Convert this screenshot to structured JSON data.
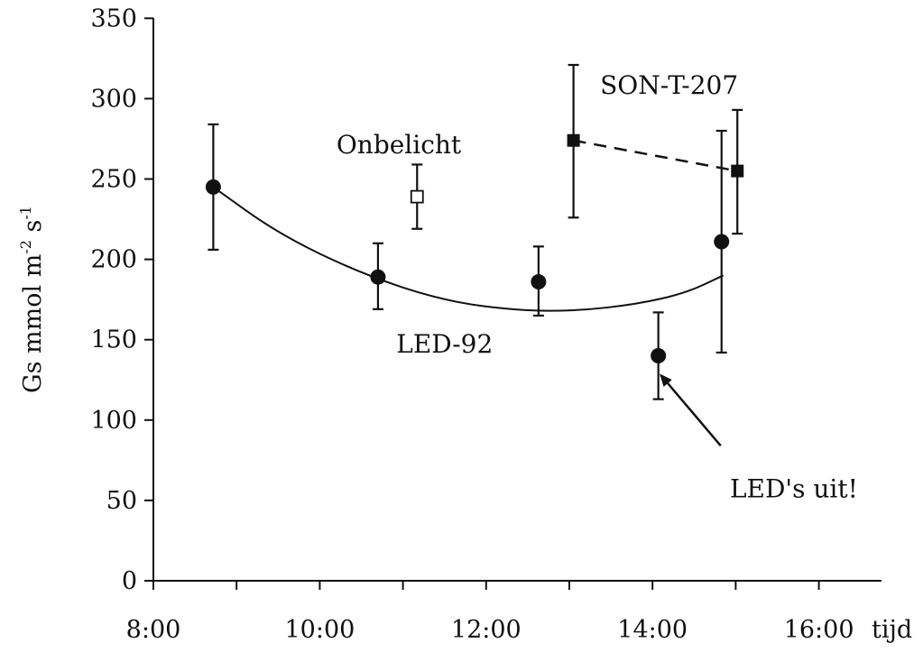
{
  "chart_data": {
    "type": "scatter",
    "xlabel": "tijd",
    "ylabel": {
      "base": "Gs mmol m",
      "sup1": "-2",
      "mid": " s",
      "sup2": "-1"
    },
    "xlim": [
      8.0,
      16.75
    ],
    "ylim": [
      0,
      350
    ],
    "x_ticks": [
      {
        "value": 8,
        "label": "8:00"
      },
      {
        "value": 10,
        "label": "10:00"
      },
      {
        "value": 12,
        "label": "12:00"
      },
      {
        "value": 14,
        "label": "14:00"
      },
      {
        "value": 16,
        "label": "16:00"
      }
    ],
    "y_ticks": [
      0,
      50,
      100,
      150,
      200,
      250,
      300,
      350
    ],
    "series": [
      {
        "name": "LED-92",
        "marker": "circle-filled",
        "points": [
          {
            "x": 8.72,
            "y": 245,
            "low": 206,
            "high": 284
          },
          {
            "x": 10.7,
            "y": 189,
            "low": 169,
            "high": 210
          },
          {
            "x": 12.63,
            "y": 186,
            "low": 165,
            "high": 208
          },
          {
            "x": 14.07,
            "y": 140,
            "low": 113,
            "high": 167
          },
          {
            "x": 14.83,
            "y": 211,
            "low": 142,
            "high": 280
          }
        ],
        "fit_curve": [
          {
            "x": 8.72,
            "y": 245
          },
          {
            "x": 9.5,
            "y": 216
          },
          {
            "x": 10.5,
            "y": 191
          },
          {
            "x": 11.5,
            "y": 174
          },
          {
            "x": 12.4,
            "y": 168
          },
          {
            "x": 13.1,
            "y": 168
          },
          {
            "x": 13.8,
            "y": 172
          },
          {
            "x": 14.4,
            "y": 179
          },
          {
            "x": 14.85,
            "y": 190
          }
        ]
      },
      {
        "name": "Onbelicht",
        "marker": "square-open",
        "points": [
          {
            "x": 11.17,
            "y": 239,
            "low": 219,
            "high": 259
          }
        ]
      },
      {
        "name": "SON-T-207",
        "marker": "square-filled",
        "connector": "dashed",
        "points": [
          {
            "x": 13.05,
            "y": 274,
            "low": 226,
            "high": 321
          },
          {
            "x": 15.02,
            "y": 255,
            "low": 216,
            "high": 293
          }
        ]
      }
    ],
    "annotations": [
      {
        "text": "SON-T-207",
        "x": 13.37,
        "y": 303
      },
      {
        "text": "Onbelicht",
        "x": 10.2,
        "y": 266
      },
      {
        "text": "LED-92",
        "x": 10.92,
        "y": 142
      },
      {
        "text": "LED's uit!",
        "x": 14.93,
        "y": 52
      }
    ],
    "arrow": {
      "from": {
        "x": 14.82,
        "y": 84
      },
      "to": {
        "x": 14.1,
        "y": 128
      }
    }
  }
}
